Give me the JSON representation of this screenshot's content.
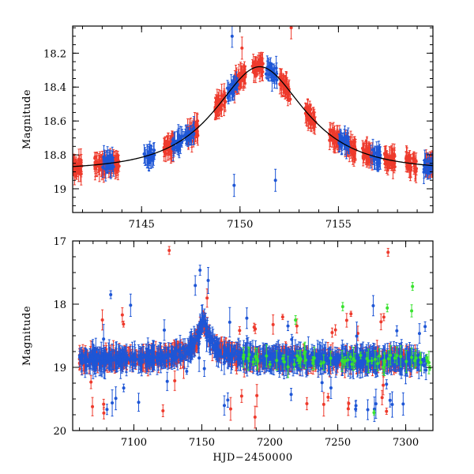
{
  "chart_data": [
    {
      "type": "scatter",
      "panel": "top",
      "ylabel": "Magnitude",
      "xlabel": "",
      "xlim": [
        7141.5,
        7159.8
      ],
      "ylim": [
        19.14,
        18.04
      ],
      "y_inverted": true,
      "xticks": [
        7145,
        7150,
        7155
      ],
      "yticks": [
        18.2,
        18.4,
        18.6,
        18.8,
        19
      ],
      "ytick_labels": [
        "18.2",
        "18.4",
        "18.6",
        "18.8",
        "19"
      ],
      "model_curve": {
        "shape": "point-lens microlensing fit",
        "peak_time": 7151.0,
        "peak_mag": 18.28,
        "baseline_mag": 18.89,
        "samples": [
          [
            7141.5,
            18.875
          ],
          [
            7143,
            18.865
          ],
          [
            7145,
            18.83
          ],
          [
            7146.5,
            18.78
          ],
          [
            7148,
            18.66
          ],
          [
            7149,
            18.53
          ],
          [
            7150,
            18.37
          ],
          [
            7151,
            18.28
          ],
          [
            7152,
            18.37
          ],
          [
            7153,
            18.53
          ],
          [
            7154,
            18.66
          ],
          [
            7155.5,
            18.78
          ],
          [
            7157,
            18.83
          ],
          [
            7159,
            18.865
          ],
          [
            7159.8,
            18.872
          ]
        ]
      },
      "series": [
        {
          "name": "red",
          "color": "#ee3a2c",
          "clusters": [
            {
              "t": 7141.7,
              "mag": 18.88
            },
            {
              "t": 7142.9,
              "mag": 18.86
            },
            {
              "t": 7143.6,
              "mag": 18.82
            },
            {
              "t": 7146.4,
              "mag": 18.72
            },
            {
              "t": 7147.6,
              "mag": 18.62
            },
            {
              "t": 7149.0,
              "mag": 18.5
            },
            {
              "t": 7150.0,
              "mag": 18.4
            },
            {
              "t": 7150.9,
              "mag": 18.28
            },
            {
              "t": 7152.3,
              "mag": 18.4
            },
            {
              "t": 7153.6,
              "mag": 18.62
            },
            {
              "t": 7154.8,
              "mag": 18.72
            },
            {
              "t": 7155.6,
              "mag": 18.76
            },
            {
              "t": 7156.5,
              "mag": 18.78
            },
            {
              "t": 7157.6,
              "mag": 18.82
            },
            {
              "t": 7158.7,
              "mag": 18.86
            },
            {
              "t": 7159.7,
              "mag": 18.88
            }
          ]
        },
        {
          "name": "blue",
          "color": "#1e56d6",
          "clusters": [
            {
              "t": 7143.3,
              "mag": 18.78
            },
            {
              "t": 7145.4,
              "mag": 18.75
            },
            {
              "t": 7146.8,
              "mag": 18.66
            },
            {
              "t": 7147.4,
              "mag": 18.62
            },
            {
              "t": 7149.6,
              "mag": 18.4
            },
            {
              "t": 7151.6,
              "mag": 18.34
            },
            {
              "t": 7155.3,
              "mag": 18.75
            },
            {
              "t": 7156.9,
              "mag": 18.8
            },
            {
              "t": 7159.6,
              "mag": 18.85
            }
          ]
        }
      ]
    },
    {
      "type": "scatter",
      "panel": "bottom",
      "ylabel": "Magnitude",
      "xlabel": "HJD−2450000",
      "xlim": [
        7055,
        7320
      ],
      "ylim": [
        20,
        17
      ],
      "y_inverted": true,
      "xticks": [
        7100,
        7150,
        7200,
        7250,
        7300
      ],
      "yticks": [
        17,
        18,
        19,
        20
      ],
      "ytick_labels": [
        "17",
        "18",
        "19",
        "20"
      ],
      "baseline_mag": 18.9,
      "event_peak": {
        "t": 7151,
        "mag": 18.28
      },
      "series": [
        {
          "name": "red",
          "color": "#ee3a2c",
          "t_range": [
            7060,
            7310
          ]
        },
        {
          "name": "blue",
          "color": "#1e56d6",
          "t_range": [
            7060,
            7315
          ]
        },
        {
          "name": "green",
          "color": "#39e22f",
          "t_range": [
            7180,
            7318
          ]
        }
      ],
      "outliers": [
        {
          "t": 7126,
          "mag": 17.15,
          "series": "red"
        },
        {
          "t": 7287,
          "mag": 17.18,
          "series": "red"
        },
        {
          "t": 7305,
          "mag": 17.72,
          "series": "green"
        },
        {
          "t": 7083,
          "mag": 17.85,
          "series": "blue"
        }
      ]
    }
  ]
}
